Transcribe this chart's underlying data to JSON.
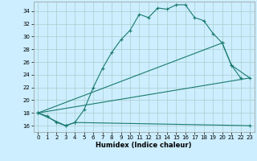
{
  "title": "",
  "xlabel": "Humidex (Indice chaleur)",
  "bg_color": "#cceeff",
  "grid_color": "#aacccc",
  "line_color": "#1a7a6e",
  "xlim": [
    -0.5,
    23.5
  ],
  "ylim": [
    15.0,
    35.5
  ],
  "yticks": [
    16,
    18,
    20,
    22,
    24,
    26,
    28,
    30,
    32,
    34
  ],
  "xticks": [
    0,
    1,
    2,
    3,
    4,
    5,
    6,
    7,
    8,
    9,
    10,
    11,
    12,
    13,
    14,
    15,
    16,
    17,
    18,
    19,
    20,
    21,
    22,
    23
  ],
  "curve1_x": [
    0,
    1,
    2,
    3,
    4,
    5,
    6,
    7,
    8,
    9,
    10,
    11,
    12,
    13,
    14,
    15,
    16,
    17,
    18,
    19,
    20,
    21,
    22
  ],
  "curve1_y": [
    18.0,
    17.5,
    16.5,
    16.0,
    16.5,
    18.5,
    22.0,
    25.0,
    27.5,
    29.5,
    31.0,
    33.5,
    33.0,
    34.5,
    34.3,
    35.0,
    35.0,
    33.0,
    32.5,
    30.5,
    29.0,
    25.5,
    23.5
  ],
  "curve2_x": [
    0,
    20,
    21,
    23
  ],
  "curve2_y": [
    18.0,
    29.0,
    25.5,
    23.5
  ],
  "curve3_x": [
    0,
    23
  ],
  "curve3_y": [
    18.0,
    23.5
  ],
  "curve4_x": [
    0,
    3,
    4,
    23
  ],
  "curve4_y": [
    18.0,
    16.0,
    16.5,
    16.0
  ]
}
